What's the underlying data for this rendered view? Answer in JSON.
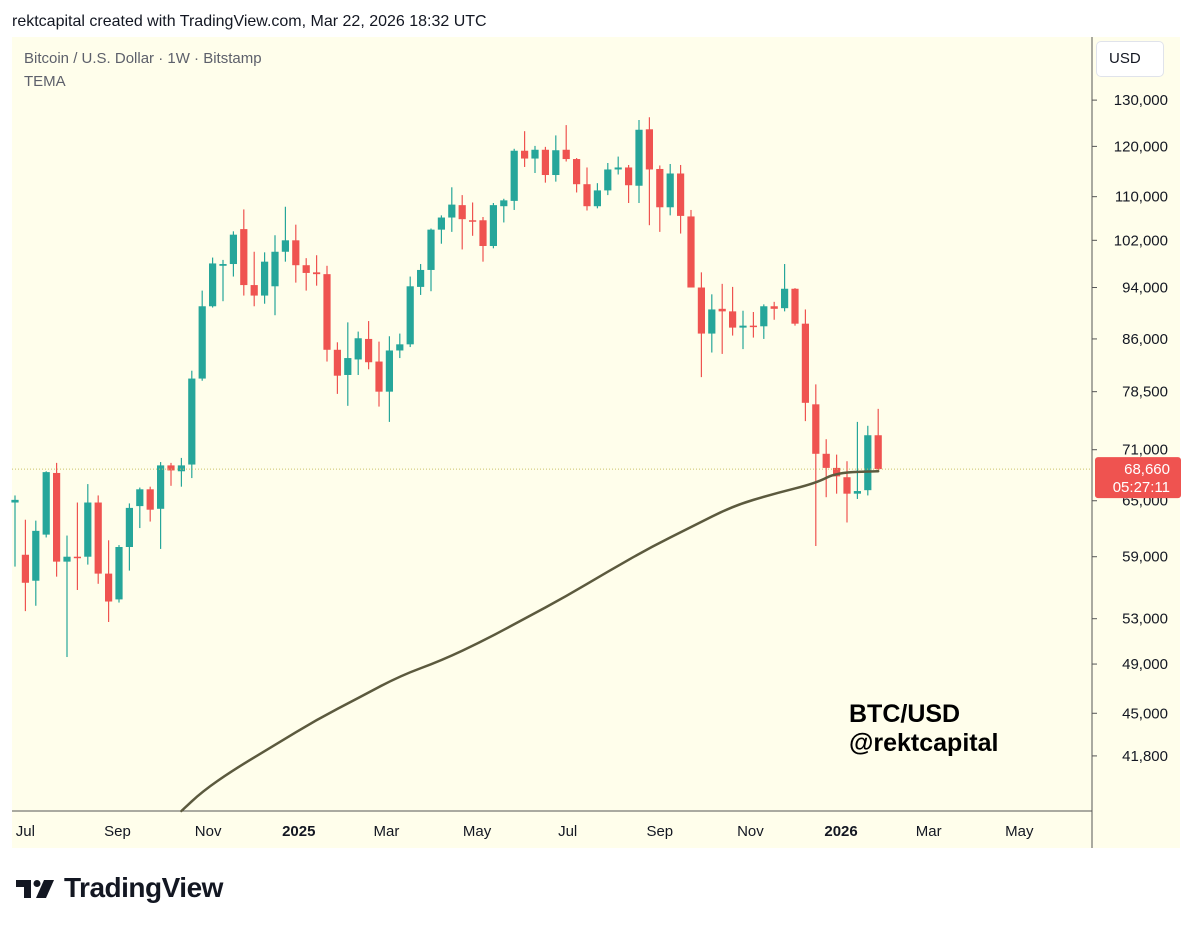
{
  "header": {
    "text": "rektcapital created with TradingView.com, Mar 22, 2026 18:32 UTC"
  },
  "chart_header": {
    "symbol": "Bitcoin / U.S. Dollar · 1W · Bitstamp",
    "indicator": "TEMA"
  },
  "currency": "USD",
  "watermark": {
    "line1": "BTC/USD",
    "line2": "@rektcapital"
  },
  "brand": {
    "name": "TradingView",
    "icon": "tradingview-logo-icon"
  },
  "colors": {
    "up": "#26a69a",
    "down": "#ef5350",
    "tema": "#5c5a3e",
    "background": "#fffeeb",
    "price_line": "#c9c26a"
  },
  "chart_data": {
    "type": "candlestick",
    "title": "Bitcoin / U.S. Dollar · 1W · Bitstamp",
    "xlabel": "",
    "ylabel": "",
    "x_ticks": [
      {
        "label": "Jul",
        "date": "2024-07-01",
        "bold": false
      },
      {
        "label": "Sep",
        "date": "2024-09-01",
        "bold": false
      },
      {
        "label": "Nov",
        "date": "2024-11-01",
        "bold": false
      },
      {
        "label": "2025",
        "date": "2025-01-01",
        "bold": true
      },
      {
        "label": "Mar",
        "date": "2025-03-01",
        "bold": false
      },
      {
        "label": "May",
        "date": "2025-05-01",
        "bold": false
      },
      {
        "label": "Jul",
        "date": "2025-07-01",
        "bold": false
      },
      {
        "label": "Sep",
        "date": "2025-09-01",
        "bold": false
      },
      {
        "label": "Nov",
        "date": "2025-11-01",
        "bold": false
      },
      {
        "label": "2026",
        "date": "2026-01-01",
        "bold": true
      },
      {
        "label": "Mar",
        "date": "2026-03-01",
        "bold": false
      },
      {
        "label": "May",
        "date": "2026-05-01",
        "bold": false
      }
    ],
    "y_ticks": [
      {
        "label": "130,000",
        "value": 130000
      },
      {
        "label": "120,000",
        "value": 120000
      },
      {
        "label": "110,000",
        "value": 110000
      },
      {
        "label": "102,000",
        "value": 102000
      },
      {
        "label": "94,000",
        "value": 94000
      },
      {
        "label": "86,000",
        "value": 86000
      },
      {
        "label": "78,500",
        "value": 78500
      },
      {
        "label": "71,000",
        "value": 71000
      },
      {
        "label": "65,000",
        "value": 65000
      },
      {
        "label": "59,000",
        "value": 59000
      },
      {
        "label": "53,000",
        "value": 53000
      },
      {
        "label": "49,000",
        "value": 49000
      },
      {
        "label": "45,000",
        "value": 45000
      },
      {
        "label": "41,800",
        "value": 41800
      }
    ],
    "y_scale": "log",
    "ylim": [
      38000,
      145000
    ],
    "grid": false,
    "current_price": {
      "value": 68660,
      "label": "68,660",
      "countdown": "05:27:11"
    },
    "candles": [
      {
        "o": 64800,
        "h": 65600,
        "l": 58000,
        "c": 65100
      },
      {
        "o": 59200,
        "h": 62900,
        "l": 53700,
        "c": 56400
      },
      {
        "o": 56600,
        "h": 62800,
        "l": 54200,
        "c": 61700
      },
      {
        "o": 61300,
        "h": 68400,
        "l": 61000,
        "c": 68300
      },
      {
        "o": 68200,
        "h": 69400,
        "l": 57000,
        "c": 58500
      },
      {
        "o": 58500,
        "h": 61200,
        "l": 49600,
        "c": 59000
      },
      {
        "o": 59000,
        "h": 64800,
        "l": 55700,
        "c": 58900
      },
      {
        "o": 59000,
        "h": 66900,
        "l": 58200,
        "c": 64800
      },
      {
        "o": 64800,
        "h": 65600,
        "l": 56300,
        "c": 57300
      },
      {
        "o": 57300,
        "h": 60700,
        "l": 52700,
        "c": 54600
      },
      {
        "o": 54800,
        "h": 60200,
        "l": 54500,
        "c": 60000
      },
      {
        "o": 60000,
        "h": 64700,
        "l": 57600,
        "c": 64200
      },
      {
        "o": 64400,
        "h": 66500,
        "l": 62000,
        "c": 66300
      },
      {
        "o": 66300,
        "h": 66600,
        "l": 62700,
        "c": 64000
      },
      {
        "o": 64100,
        "h": 69500,
        "l": 59800,
        "c": 69100
      },
      {
        "o": 69100,
        "h": 69400,
        "l": 66700,
        "c": 68500
      },
      {
        "o": 68400,
        "h": 70000,
        "l": 66600,
        "c": 69100
      },
      {
        "o": 69200,
        "h": 81400,
        "l": 67600,
        "c": 80300
      },
      {
        "o": 80300,
        "h": 93500,
        "l": 80000,
        "c": 91000
      },
      {
        "o": 91000,
        "h": 99000,
        "l": 90800,
        "c": 98000
      },
      {
        "o": 97600,
        "h": 98600,
        "l": 91800,
        "c": 97900
      },
      {
        "o": 97900,
        "h": 103600,
        "l": 95800,
        "c": 103000
      },
      {
        "o": 104000,
        "h": 107600,
        "l": 92700,
        "c": 94400
      },
      {
        "o": 94400,
        "h": 100000,
        "l": 91000,
        "c": 92700
      },
      {
        "o": 92700,
        "h": 99900,
        "l": 91400,
        "c": 98300
      },
      {
        "o": 94200,
        "h": 102900,
        "l": 89600,
        "c": 100000
      },
      {
        "o": 100000,
        "h": 108100,
        "l": 98300,
        "c": 102000
      },
      {
        "o": 102000,
        "h": 104800,
        "l": 94800,
        "c": 97700
      },
      {
        "o": 97700,
        "h": 98900,
        "l": 93500,
        "c": 96400
      },
      {
        "o": 96500,
        "h": 99400,
        "l": 94300,
        "c": 96200
      },
      {
        "o": 96200,
        "h": 97600,
        "l": 82700,
        "c": 84400
      },
      {
        "o": 84400,
        "h": 85500,
        "l": 78200,
        "c": 80700
      },
      {
        "o": 80800,
        "h": 88500,
        "l": 76600,
        "c": 83200
      },
      {
        "o": 83000,
        "h": 87100,
        "l": 80800,
        "c": 86100
      },
      {
        "o": 86000,
        "h": 88700,
        "l": 81600,
        "c": 82600
      },
      {
        "o": 82700,
        "h": 85600,
        "l": 76500,
        "c": 78500
      },
      {
        "o": 78500,
        "h": 86400,
        "l": 74500,
        "c": 84300
      },
      {
        "o": 84300,
        "h": 86800,
        "l": 83200,
        "c": 85200
      },
      {
        "o": 85200,
        "h": 95800,
        "l": 84800,
        "c": 94200
      },
      {
        "o": 94100,
        "h": 97900,
        "l": 92800,
        "c": 96900
      },
      {
        "o": 96900,
        "h": 104100,
        "l": 93400,
        "c": 103900
      },
      {
        "o": 103900,
        "h": 106500,
        "l": 101400,
        "c": 106100
      },
      {
        "o": 106100,
        "h": 111800,
        "l": 103500,
        "c": 108500
      },
      {
        "o": 108400,
        "h": 110300,
        "l": 100400,
        "c": 105800
      },
      {
        "o": 105600,
        "h": 108900,
        "l": 102800,
        "c": 105500
      },
      {
        "o": 105600,
        "h": 106200,
        "l": 98300,
        "c": 101000
      },
      {
        "o": 101000,
        "h": 108800,
        "l": 100600,
        "c": 108400
      },
      {
        "o": 108200,
        "h": 109600,
        "l": 105200,
        "c": 109300
      },
      {
        "o": 109200,
        "h": 119500,
        "l": 107500,
        "c": 119100
      },
      {
        "o": 119100,
        "h": 123200,
        "l": 115800,
        "c": 117500
      },
      {
        "o": 117500,
        "h": 120100,
        "l": 114600,
        "c": 119300
      },
      {
        "o": 119300,
        "h": 119900,
        "l": 112700,
        "c": 114200
      },
      {
        "o": 114200,
        "h": 122300,
        "l": 112900,
        "c": 119200
      },
      {
        "o": 119300,
        "h": 124500,
        "l": 116900,
        "c": 117400
      },
      {
        "o": 117400,
        "h": 117600,
        "l": 110800,
        "c": 112400
      },
      {
        "o": 112400,
        "h": 115700,
        "l": 107400,
        "c": 108200
      },
      {
        "o": 108200,
        "h": 112600,
        "l": 107800,
        "c": 111200
      },
      {
        "o": 111200,
        "h": 116600,
        "l": 110300,
        "c": 115300
      },
      {
        "o": 115300,
        "h": 117900,
        "l": 114300,
        "c": 115700
      },
      {
        "o": 115700,
        "h": 116200,
        "l": 108800,
        "c": 112200
      },
      {
        "o": 112100,
        "h": 125600,
        "l": 108800,
        "c": 123500
      },
      {
        "o": 123600,
        "h": 126200,
        "l": 104700,
        "c": 115300
      },
      {
        "o": 115400,
        "h": 116100,
        "l": 103500,
        "c": 108000
      },
      {
        "o": 108000,
        "h": 116400,
        "l": 106500,
        "c": 114500
      },
      {
        "o": 114500,
        "h": 116200,
        "l": 103200,
        "c": 106400
      },
      {
        "o": 106300,
        "h": 107500,
        "l": 94000,
        "c": 94000
      },
      {
        "o": 94000,
        "h": 96500,
        "l": 80500,
        "c": 86800
      },
      {
        "o": 86800,
        "h": 92900,
        "l": 84000,
        "c": 90500
      },
      {
        "o": 90600,
        "h": 94600,
        "l": 83800,
        "c": 90200
      },
      {
        "o": 90200,
        "h": 94100,
        "l": 86500,
        "c": 87700
      },
      {
        "o": 87700,
        "h": 90300,
        "l": 84500,
        "c": 88000
      },
      {
        "o": 88000,
        "h": 90100,
        "l": 86200,
        "c": 87900
      },
      {
        "o": 87900,
        "h": 91300,
        "l": 86000,
        "c": 91000
      },
      {
        "o": 91000,
        "h": 91700,
        "l": 88900,
        "c": 90600
      },
      {
        "o": 90700,
        "h": 97900,
        "l": 90200,
        "c": 93800
      },
      {
        "o": 93800,
        "h": 93900,
        "l": 88000,
        "c": 88300
      },
      {
        "o": 88300,
        "h": 90500,
        "l": 74600,
        "c": 77000
      },
      {
        "o": 76800,
        "h": 79500,
        "l": 60100,
        "c": 70500
      },
      {
        "o": 70500,
        "h": 72300,
        "l": 65400,
        "c": 68800
      },
      {
        "o": 68800,
        "h": 70400,
        "l": 65800,
        "c": 67800
      },
      {
        "o": 67700,
        "h": 69600,
        "l": 62600,
        "c": 65800
      },
      {
        "o": 65800,
        "h": 74500,
        "l": 65200,
        "c": 66100
      },
      {
        "o": 66200,
        "h": 74000,
        "l": 65600,
        "c": 72800
      },
      {
        "o": 72800,
        "h": 76200,
        "l": 68500,
        "c": 68660
      }
    ],
    "tema": [
      {
        "i": 16,
        "v": 38000
      },
      {
        "i": 18,
        "v": 39300
      },
      {
        "i": 21,
        "v": 40800
      },
      {
        "i": 25,
        "v": 42600
      },
      {
        "i": 29,
        "v": 44500
      },
      {
        "i": 33,
        "v": 46200
      },
      {
        "i": 37,
        "v": 48000
      },
      {
        "i": 41,
        "v": 49300
      },
      {
        "i": 45,
        "v": 51000
      },
      {
        "i": 49,
        "v": 53000
      },
      {
        "i": 53,
        "v": 55100
      },
      {
        "i": 57,
        "v": 57500
      },
      {
        "i": 61,
        "v": 59900
      },
      {
        "i": 65,
        "v": 62100
      },
      {
        "i": 69,
        "v": 64400
      },
      {
        "i": 73,
        "v": 65800
      },
      {
        "i": 77,
        "v": 67000
      },
      {
        "i": 79,
        "v": 68250
      },
      {
        "i": 83,
        "v": 68400
      }
    ]
  }
}
